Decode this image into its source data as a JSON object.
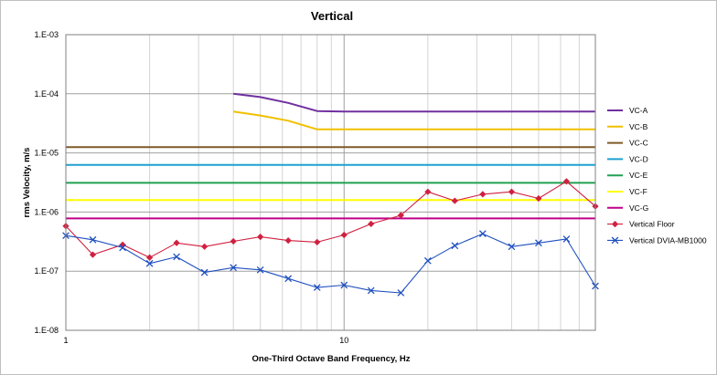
{
  "chart_data": {
    "type": "line",
    "title": "Vertical",
    "xlabel": "One-Third Octave Band Frequency, Hz",
    "ylabel": "rms Velocity, m/s",
    "x_scale": "log",
    "y_scale": "log",
    "xlim": [
      1,
      80
    ],
    "ylim": [
      1e-08,
      0.001
    ],
    "x_tick_labels": [
      {
        "value": 1,
        "label": "1"
      },
      {
        "value": 10,
        "label": "10"
      }
    ],
    "y_tick_labels": [
      {
        "value": 0.001,
        "label": "1.E-03"
      },
      {
        "value": 0.0001,
        "label": "1.E-04"
      },
      {
        "value": 1e-05,
        "label": "1.E-05"
      },
      {
        "value": 1e-06,
        "label": "1.E-06"
      },
      {
        "value": 1e-07,
        "label": "1.E-07"
      },
      {
        "value": 1e-08,
        "label": "1.E-08"
      }
    ],
    "grid": true,
    "legend_position": "right",
    "series": [
      {
        "name": "VC-A",
        "color": "#7030a0",
        "marker": "none",
        "x": [
          4,
          5,
          6.3,
          8,
          10,
          80
        ],
        "y": [
          0.0001,
          8.8e-05,
          7e-05,
          5.1e-05,
          5e-05,
          5e-05
        ]
      },
      {
        "name": "VC-B",
        "color": "#f0c000",
        "marker": "none",
        "x": [
          4,
          5,
          6.3,
          8,
          10,
          80
        ],
        "y": [
          5e-05,
          4.3e-05,
          3.5e-05,
          2.5e-05,
          2.5e-05,
          2.5e-05
        ]
      },
      {
        "name": "VC-C",
        "color": "#7f5a28",
        "marker": "none",
        "x": [
          1,
          80
        ],
        "y": [
          1.25e-05,
          1.25e-05
        ]
      },
      {
        "name": "VC-D",
        "color": "#1ea0d0",
        "marker": "none",
        "x": [
          1,
          80
        ],
        "y": [
          6.25e-06,
          6.25e-06
        ]
      },
      {
        "name": "VC-E",
        "color": "#20a050",
        "marker": "none",
        "x": [
          1,
          80
        ],
        "y": [
          3.12e-06,
          3.12e-06
        ]
      },
      {
        "name": "VC-F",
        "color": "#ffff00",
        "marker": "none",
        "x": [
          1,
          80
        ],
        "y": [
          1.6e-06,
          1.6e-06
        ]
      },
      {
        "name": "VC-G",
        "color": "#c0008a",
        "marker": "none",
        "x": [
          1,
          80
        ],
        "y": [
          7.8e-07,
          7.8e-07
        ]
      },
      {
        "name": "Vertical Floor",
        "color": "#d02040",
        "marker": "diamond",
        "x": [
          1,
          1.25,
          1.6,
          2,
          2.5,
          3.15,
          4,
          5,
          6.3,
          8,
          10,
          12.5,
          16,
          20,
          25,
          31.5,
          40,
          50,
          63,
          80
        ],
        "y": [
          5.8e-07,
          1.9e-07,
          2.8e-07,
          1.7e-07,
          3e-07,
          2.6e-07,
          3.2e-07,
          3.8e-07,
          3.3e-07,
          3.1e-07,
          4.1e-07,
          6.3e-07,
          8.8e-07,
          2.2e-06,
          1.55e-06,
          2e-06,
          2.2e-06,
          1.7e-06,
          3.3e-06,
          1.25e-06
        ]
      },
      {
        "name": "Vertical DVIA-MB1000",
        "color": "#1f4fbf",
        "marker": "x",
        "x": [
          1,
          1.25,
          1.6,
          2,
          2.5,
          3.15,
          4,
          5,
          6.3,
          8,
          10,
          12.5,
          16,
          20,
          25,
          31.5,
          40,
          50,
          63,
          80
        ],
        "y": [
          4e-07,
          3.4e-07,
          2.5e-07,
          1.35e-07,
          1.75e-07,
          9.5e-08,
          1.15e-07,
          1.05e-07,
          7.5e-08,
          5.3e-08,
          5.8e-08,
          4.7e-08,
          4.3e-08,
          1.5e-07,
          2.7e-07,
          4.3e-07,
          2.6e-07,
          3e-07,
          3.5e-07,
          5.6e-08
        ]
      }
    ]
  }
}
